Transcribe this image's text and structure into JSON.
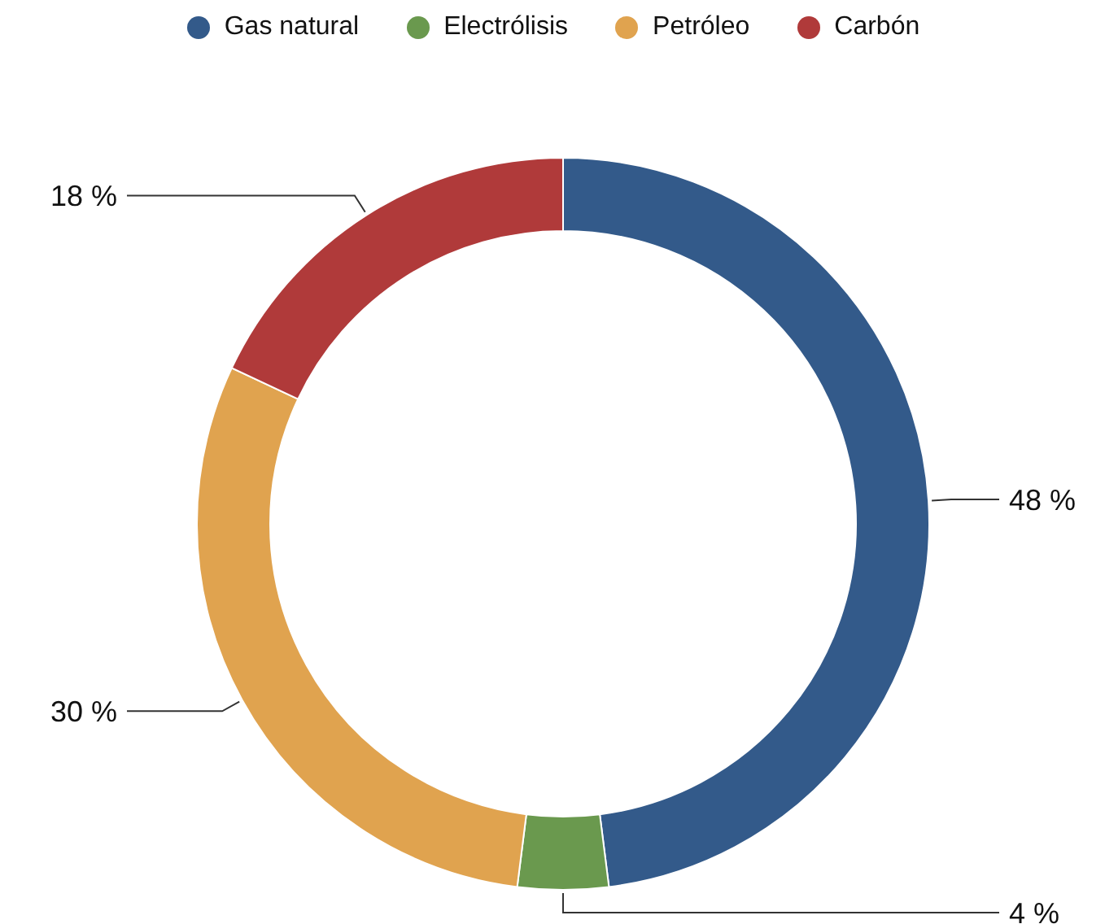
{
  "chart_data": {
    "type": "donut",
    "categories": [
      "Gas natural",
      "Electrólisis",
      "Petróleo",
      "Carbón"
    ],
    "values": [
      48,
      4,
      30,
      18
    ],
    "colors": [
      "#335a8a",
      "#6a994e",
      "#e0a34f",
      "#b03a3a"
    ],
    "value_labels": [
      "48 %",
      "4 %",
      "30 %",
      "18 %"
    ],
    "legend": "top"
  }
}
